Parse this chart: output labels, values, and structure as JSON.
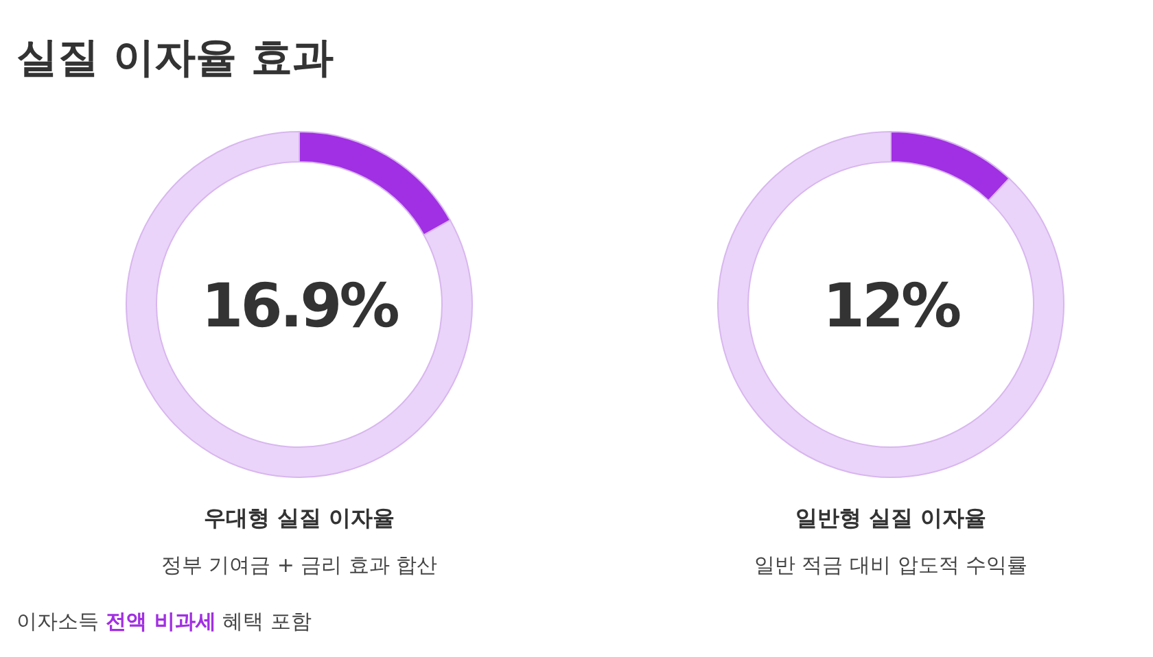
{
  "chart_data": [
    {
      "type": "donut",
      "title": "실질 이자율 효과",
      "categories": [
        null,
        null
      ],
      "values": [
        16.9,
        83.1
      ],
      "colors": [
        "#a12fe3",
        "#ead4f9"
      ],
      "xlabel": "우대형 실질 이자율",
      "annotations": [
        "16.9%",
        "정부 기여금 + 금리 효과 합산",
        "이자소득",
        "전액 비과세",
        "혜택 포함"
      ]
    },
    {
      "type": "donut",
      "categories": [
        null,
        null
      ],
      "values": [
        12,
        88
      ],
      "colors": [
        "#a12fe3",
        "#ead4f9"
      ],
      "xlabel": "일반형 실질 이자율",
      "annotations": [
        "12%",
        "일반 적금 대비 압도적 수익률"
      ]
    }
  ]
}
